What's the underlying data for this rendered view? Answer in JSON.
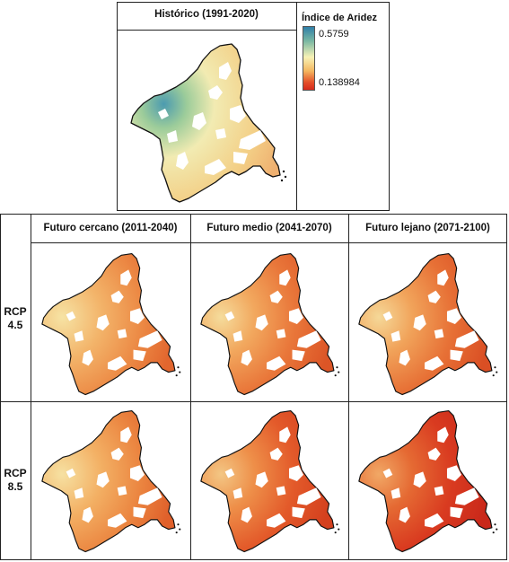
{
  "historical": {
    "title": "Histórico (1991-2020)"
  },
  "legend": {
    "title": "Índice de Aridez",
    "max": "0.5759",
    "min": "0.138984",
    "colors": [
      "#2f7fa8",
      "#78b7a3",
      "#f7f2b6",
      "#f4b760",
      "#e4502a",
      "#d62a1c"
    ]
  },
  "columns": [
    {
      "title": "Futuro cercano (2011-2040)"
    },
    {
      "title": "Futuro medio (2041-2070)"
    },
    {
      "title": "Futuro lejano (2071-2100)"
    }
  ],
  "rows": [
    {
      "label_line1": "RCP",
      "label_line2": "4.5"
    },
    {
      "label_line1": "RCP",
      "label_line2": "8.5"
    }
  ]
}
